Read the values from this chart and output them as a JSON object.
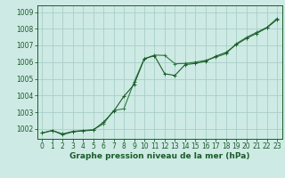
{
  "bg_color": "#ceeae4",
  "grid_color": "#aacec8",
  "line_color1": "#1a5c2a",
  "line_color2": "#2d7a42",
  "xlabel": "Graphe pression niveau de la mer (hPa)",
  "ylim": [
    1001.4,
    1009.4
  ],
  "xlim": [
    -0.5,
    23.5
  ],
  "yticks": [
    1002,
    1003,
    1004,
    1005,
    1006,
    1007,
    1008,
    1009
  ],
  "xticks": [
    0,
    1,
    2,
    3,
    4,
    5,
    6,
    7,
    8,
    9,
    10,
    11,
    12,
    13,
    14,
    15,
    16,
    17,
    18,
    19,
    20,
    21,
    22,
    23
  ],
  "series1_x": [
    0,
    1,
    2,
    3,
    4,
    5,
    6,
    7,
    8,
    9,
    10,
    11,
    12,
    13,
    14,
    15,
    16,
    17,
    18,
    19,
    20,
    21,
    22,
    23
  ],
  "series1_y": [
    1001.75,
    1001.9,
    1001.65,
    1001.82,
    1001.88,
    1001.92,
    1002.4,
    1003.05,
    1003.95,
    1004.65,
    1006.2,
    1006.38,
    1005.3,
    1005.2,
    1005.85,
    1005.92,
    1006.05,
    1006.35,
    1006.58,
    1007.05,
    1007.42,
    1007.72,
    1008.05,
    1008.55
  ],
  "series2_x": [
    0,
    1,
    2,
    3,
    4,
    5,
    6,
    7,
    8,
    9,
    10,
    11,
    12,
    13,
    14,
    15,
    16,
    17,
    18,
    19,
    20,
    21,
    22,
    23
  ],
  "series2_y": [
    1001.75,
    1001.9,
    1001.7,
    1001.85,
    1001.9,
    1001.95,
    1002.3,
    1003.1,
    1003.2,
    1004.8,
    1006.2,
    1006.42,
    1006.4,
    1005.9,
    1005.92,
    1006.0,
    1006.1,
    1006.3,
    1006.5,
    1007.1,
    1007.48,
    1007.78,
    1008.08,
    1008.62
  ],
  "tick_fontsize": 5.5,
  "xlabel_fontsize": 6.5,
  "marker_size": 3.0,
  "line_width": 0.8
}
